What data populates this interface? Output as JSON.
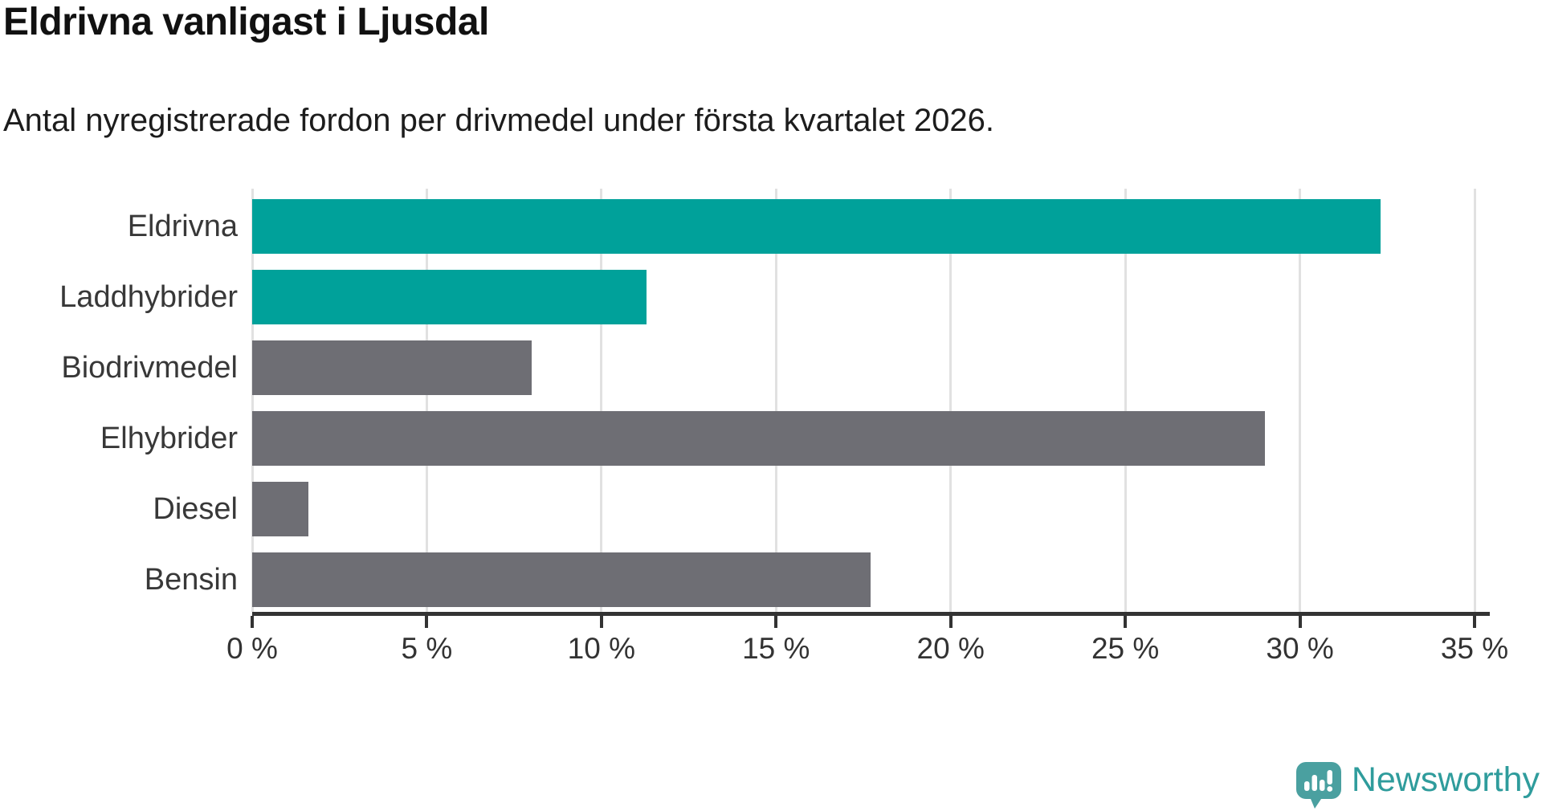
{
  "header": {
    "title": "Eldrivna vanligast i Ljusdal",
    "subtitle": "Antal nyregistrerade fordon per drivmedel under första kvartalet 2026."
  },
  "chart_data": {
    "type": "bar",
    "orientation": "horizontal",
    "title": "Eldrivna vanligast i Ljusdal",
    "categories": [
      "Eldrivna",
      "Laddhybrider",
      "Biodrivmedel",
      "Elhybrider",
      "Diesel",
      "Bensin"
    ],
    "values": [
      32.3,
      11.3,
      8.0,
      29.0,
      1.6,
      17.7
    ],
    "unit": "%",
    "bar_colors": [
      "#00a19a",
      "#00a19a",
      "#6e6e74",
      "#6e6e74",
      "#6e6e74",
      "#6e6e74"
    ],
    "highlight_color": "#00a19a",
    "default_color": "#6e6e74",
    "xlim": [
      0,
      35
    ],
    "x_ticks": [
      0,
      5,
      10,
      15,
      20,
      25,
      30,
      35
    ],
    "x_tick_labels": [
      "0 %",
      "5 %",
      "10 %",
      "15 %",
      "20 %",
      "25 %",
      "30 %",
      "35 %"
    ],
    "grid": true,
    "gridline_color": "#e1e1e1",
    "axis_color": "#333333"
  },
  "footer": {
    "logo_text": "Newsworthy",
    "logo_color": "#2f9c9c",
    "logo_icon": "bar-chart-speech-bubble"
  }
}
